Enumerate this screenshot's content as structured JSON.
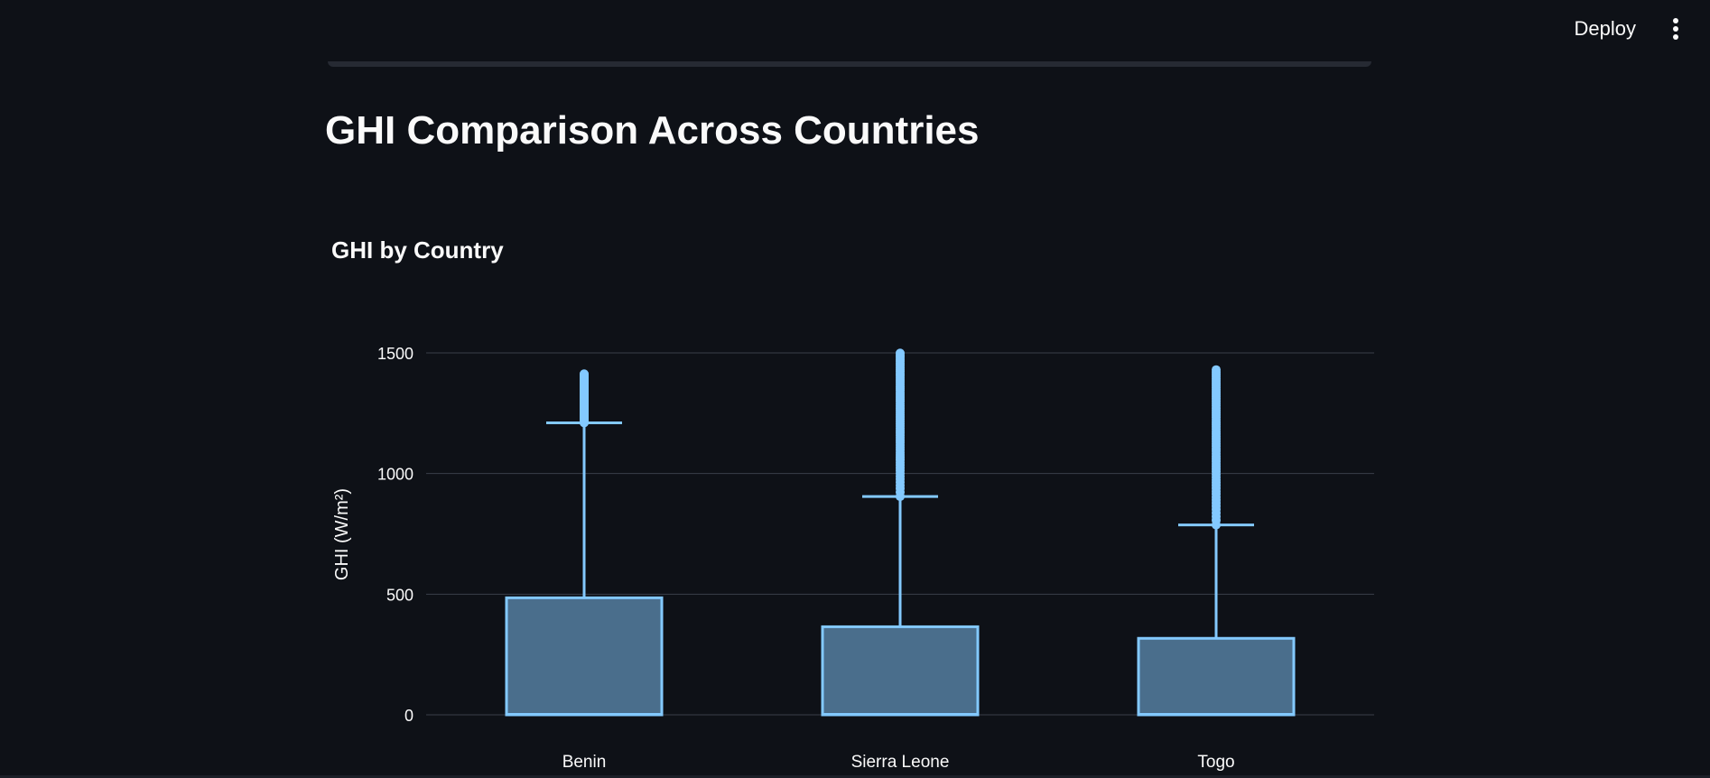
{
  "header": {
    "deploy_label": "Deploy",
    "menu_icon": "vertical-ellipsis-icon"
  },
  "main": {
    "page_title": "GHI Comparison Across Countries"
  },
  "colors": {
    "background": "#0e1117",
    "box_fill": "#4a6e8c",
    "box_stroke": "#83c9ff",
    "grid": "#3a3f4a",
    "text": "#fafafa"
  },
  "chart_data": {
    "type": "box",
    "title": "GHI by Country",
    "xlabel": "",
    "ylabel": "GHI (W/m²)",
    "ylim": [
      0,
      1500
    ],
    "yticks": [
      0,
      500,
      1000,
      1500
    ],
    "grid": true,
    "categories": [
      "Benin",
      "Sierra Leone",
      "Togo"
    ],
    "boxes": [
      {
        "category": "Benin",
        "min": 0,
        "q1": 0,
        "median": 2,
        "q3": 485,
        "upper_whisker": 1210,
        "outliers_from": 1210,
        "outliers_to": 1413
      },
      {
        "category": "Sierra Leone",
        "min": 0,
        "q1": 0,
        "median": 2,
        "q3": 365,
        "upper_whisker": 905,
        "outliers_from": 905,
        "outliers_to": 1499
      },
      {
        "category": "Togo",
        "min": 0,
        "q1": 0,
        "median": 2,
        "q3": 317,
        "upper_whisker": 787,
        "outliers_from": 787,
        "outliers_to": 1430
      }
    ]
  }
}
